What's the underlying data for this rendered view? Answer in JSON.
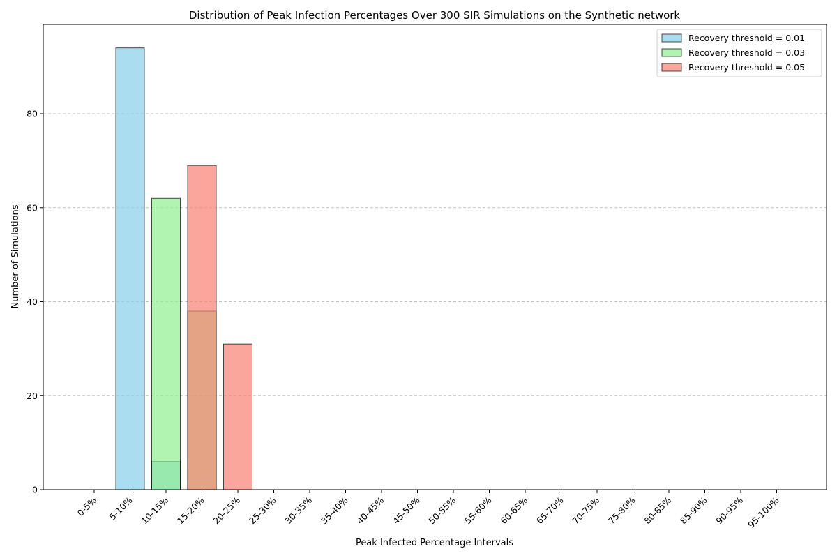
{
  "chart_data": {
    "type": "bar",
    "title": "Distribution of Peak Infection Percentages Over 300 SIR Simulations on the Synthetic network",
    "xlabel": "Peak Infected Percentage Intervals",
    "ylabel": "Number of Simulations",
    "categories": [
      "0-5%",
      "5-10%",
      "10-15%",
      "15-20%",
      "20-25%",
      "25-30%",
      "30-35%",
      "35-40%",
      "40-45%",
      "45-50%",
      "50-55%",
      "55-60%",
      "60-65%",
      "65-70%",
      "70-75%",
      "75-80%",
      "80-85%",
      "85-90%",
      "90-95%",
      "95-100%"
    ],
    "series": [
      {
        "name": "Recovery threshold = 0.01",
        "color": "#87ceeb",
        "values": [
          0,
          94,
          6,
          0,
          0,
          0,
          0,
          0,
          0,
          0,
          0,
          0,
          0,
          0,
          0,
          0,
          0,
          0,
          0,
          0
        ]
      },
      {
        "name": "Recovery threshold = 0.03",
        "color": "#90ee90",
        "values": [
          0,
          0,
          62,
          38,
          0,
          0,
          0,
          0,
          0,
          0,
          0,
          0,
          0,
          0,
          0,
          0,
          0,
          0,
          0,
          0
        ]
      },
      {
        "name": "Recovery threshold = 0.05",
        "color": "#fa8072",
        "values": [
          0,
          0,
          0,
          69,
          31,
          0,
          0,
          0,
          0,
          0,
          0,
          0,
          0,
          0,
          0,
          0,
          0,
          0,
          0,
          0
        ]
      }
    ],
    "ylim": [
      0,
      99
    ],
    "yticks": [
      0,
      20,
      40,
      60,
      80
    ],
    "grid": "y dashed",
    "legend": "top-right",
    "bar_alpha": 0.7,
    "edge_color": "#000000"
  }
}
